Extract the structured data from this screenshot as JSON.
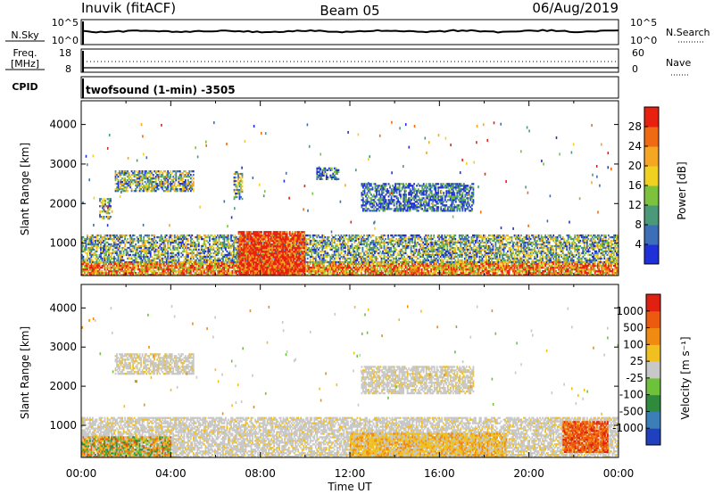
{
  "header": {
    "station": "Inuvik (fitACF)",
    "beam": "Beam 05",
    "date": "06/Aug/2019"
  },
  "nsky_panel": {
    "left_label": "N.Sky",
    "left_ticks": [
      "10^5",
      "10^0"
    ],
    "right_ticks": [
      "10^5",
      "10^0"
    ],
    "right_label": "N.Search"
  },
  "freq_panel": {
    "left_label_1": "Freq.",
    "left_label_2": "[MHz]",
    "left_ticks": [
      "18",
      "8"
    ],
    "right_ticks": [
      "60",
      "0"
    ],
    "right_label": "Nave"
  },
  "cpid_panel": {
    "label": "CPID",
    "text": "twofsound (1-min) -3505"
  },
  "chart_data": [
    {
      "type": "heatmap",
      "name": "power-panel",
      "ylabel": "Slant Range [km]",
      "yticks": [
        "1000",
        "2000",
        "3000",
        "4000"
      ],
      "ylim": [
        180,
        4600
      ],
      "xlim": [
        0,
        24
      ],
      "colorbar": {
        "label": "Power [dB]",
        "ticks": [
          "4",
          "8",
          "12",
          "16",
          "20",
          "24",
          "28"
        ],
        "colors": [
          "#2030d8",
          "#3d6fb8",
          "#4a9a7a",
          "#7cc23c",
          "#f0d020",
          "#f5a623",
          "#ef6a12",
          "#e82010"
        ]
      },
      "regions": [
        {
          "t0": 0.0,
          "t1": 24.0,
          "r0": 180,
          "r1": 500,
          "level": "high"
        },
        {
          "t0": 0.0,
          "t1": 24.0,
          "r0": 500,
          "r1": 1200,
          "level": "mid"
        },
        {
          "t0": 7.0,
          "t1": 10.0,
          "r0": 180,
          "r1": 1300,
          "level": "max"
        },
        {
          "t0": 1.5,
          "t1": 5.0,
          "r0": 2300,
          "r1": 2800,
          "level": "mid"
        },
        {
          "t0": 0.8,
          "t1": 1.3,
          "r0": 1600,
          "r1": 2100,
          "level": "mid"
        },
        {
          "t0": 6.8,
          "t1": 7.2,
          "r0": 2100,
          "r1": 2800,
          "level": "mid"
        },
        {
          "t0": 12.5,
          "t1": 17.5,
          "r0": 1800,
          "r1": 2500,
          "level": "low"
        },
        {
          "t0": 10.5,
          "t1": 11.5,
          "r0": 2600,
          "r1": 2900,
          "level": "low"
        }
      ]
    },
    {
      "type": "heatmap",
      "name": "velocity-panel",
      "ylabel": "Slant Range [km]",
      "yticks": [
        "1000",
        "2000",
        "3000",
        "4000"
      ],
      "ylim": [
        180,
        4600
      ],
      "xlim": [
        0,
        24
      ],
      "xticks": [
        "00:00",
        "04:00",
        "08:00",
        "12:00",
        "16:00",
        "20:00",
        "00:00"
      ],
      "xlabel": "Time UT",
      "colorbar": {
        "label": "Velocity [m s⁻¹]",
        "ticks": [
          "1000",
          "500",
          "100",
          "25",
          "-25",
          "-100",
          "-500",
          "-1000"
        ],
        "colors": [
          "#2040c0",
          "#3c7fb8",
          "#2f8a3e",
          "#6ec13a",
          "#c8c8c8",
          "#f0c020",
          "#ef8a12",
          "#ec5a10",
          "#e02010"
        ]
      },
      "regions": [
        {
          "t0": 0.0,
          "t1": 24.0,
          "r0": 180,
          "r1": 1200,
          "level": "ground"
        },
        {
          "t0": 12.0,
          "t1": 19.0,
          "r0": 180,
          "r1": 800,
          "level": "negative"
        },
        {
          "t0": 21.5,
          "t1": 23.5,
          "r0": 300,
          "r1": 1100,
          "level": "strong-negative"
        },
        {
          "t0": 0.0,
          "t1": 4.0,
          "r0": 180,
          "r1": 700,
          "level": "mixed"
        },
        {
          "t0": 1.5,
          "t1": 5.0,
          "r0": 2300,
          "r1": 2800,
          "level": "ground"
        },
        {
          "t0": 12.5,
          "t1": 17.5,
          "r0": 1800,
          "r1": 2500,
          "level": "ground"
        }
      ]
    }
  ]
}
